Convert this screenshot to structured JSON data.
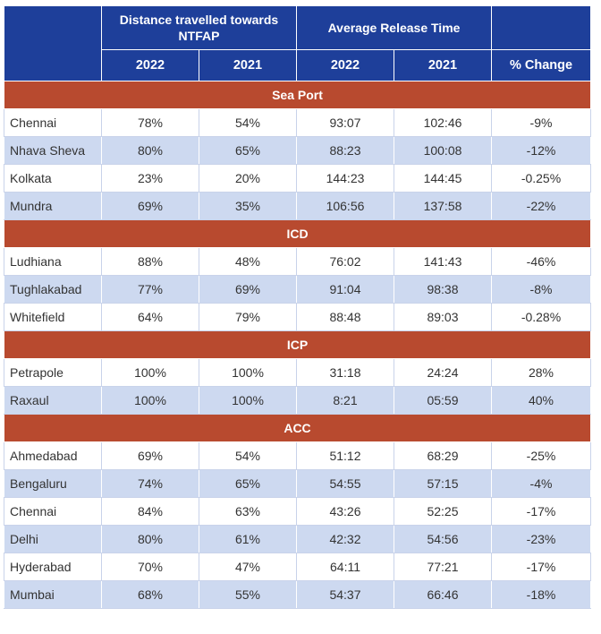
{
  "header": {
    "group1": "Distance travelled towards NTFAP",
    "group2": "Average Release Time",
    "sub": [
      "2022",
      "2021",
      "2022",
      "2021",
      "% Change"
    ]
  },
  "sections": [
    {
      "title": "Sea Port",
      "rows": [
        [
          "Chennai",
          "78%",
          "54%",
          "93:07",
          "102:46",
          "-9%"
        ],
        [
          "Nhava Sheva",
          "80%",
          "65%",
          "88:23",
          "100:08",
          "-12%"
        ],
        [
          "Kolkata",
          "23%",
          "20%",
          "144:23",
          "144:45",
          "-0.25%"
        ],
        [
          "Mundra",
          "69%",
          "35%",
          "106:56",
          "137:58",
          "-22%"
        ]
      ]
    },
    {
      "title": "ICD",
      "rows": [
        [
          "Ludhiana",
          "88%",
          "48%",
          "76:02",
          "141:43",
          "-46%"
        ],
        [
          "Tughlakabad",
          "77%",
          "69%",
          "91:04",
          "98:38",
          "-8%"
        ],
        [
          "Whitefield",
          "64%",
          "79%",
          "88:48",
          "89:03",
          "-0.28%"
        ]
      ]
    },
    {
      "title": "ICP",
      "rows": [
        [
          "Petrapole",
          "100%",
          "100%",
          "31:18",
          "24:24",
          "28%"
        ],
        [
          "Raxaul",
          "100%",
          "100%",
          "8:21",
          "05:59",
          "40%"
        ]
      ]
    },
    {
      "title": "ACC",
      "rows": [
        [
          "Ahmedabad",
          "69%",
          "54%",
          "51:12",
          "68:29",
          "-25%"
        ],
        [
          "Bengaluru",
          "74%",
          "65%",
          "54:55",
          "57:15",
          "-4%"
        ],
        [
          "Chennai",
          "84%",
          "63%",
          "43:26",
          "52:25",
          "-17%"
        ],
        [
          "Delhi",
          "80%",
          "61%",
          "42:32",
          "54:56",
          "-23%"
        ],
        [
          "Hyderabad",
          "70%",
          "47%",
          "64:11",
          "77:21",
          "-17%"
        ],
        [
          "Mumbai",
          "68%",
          "55%",
          "54:37",
          "66:46",
          "-18%"
        ]
      ]
    }
  ]
}
